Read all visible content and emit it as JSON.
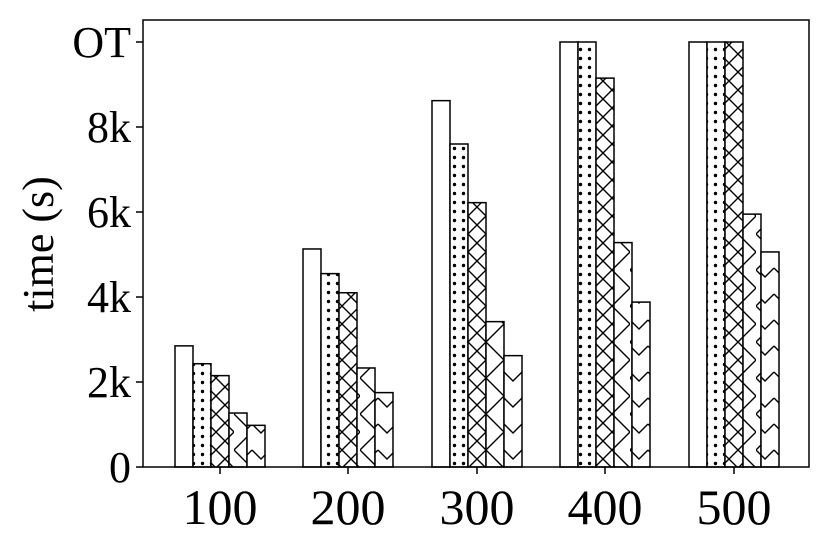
{
  "chart_data": {
    "type": "bar",
    "title": "",
    "xlabel": "",
    "ylabel": "time (s)",
    "categories": [
      "100",
      "200",
      "300",
      "400",
      "500"
    ],
    "ylim": [
      0,
      10000
    ],
    "yticks": [
      {
        "value": 0,
        "label": "0"
      },
      {
        "value": 2000,
        "label": "2k"
      },
      {
        "value": 4000,
        "label": "4k"
      },
      {
        "value": 6000,
        "label": "6k"
      },
      {
        "value": 8000,
        "label": "8k"
      },
      {
        "value": 10000,
        "label": "OT"
      }
    ],
    "grid": false,
    "legend": "none",
    "series": [
      {
        "pattern": "none",
        "values": [
          2850,
          5130,
          8620,
          10000,
          10000
        ]
      },
      {
        "pattern": "dots",
        "values": [
          2430,
          4550,
          7600,
          10000,
          10000
        ]
      },
      {
        "pattern": "cross",
        "values": [
          2150,
          4100,
          6220,
          9150,
          10000
        ]
      },
      {
        "pattern": "diagonal",
        "values": [
          1270,
          2330,
          3420,
          5280,
          5950
        ]
      },
      {
        "pattern": "chevron",
        "values": [
          980,
          1750,
          2620,
          3880,
          5060
        ]
      }
    ]
  }
}
